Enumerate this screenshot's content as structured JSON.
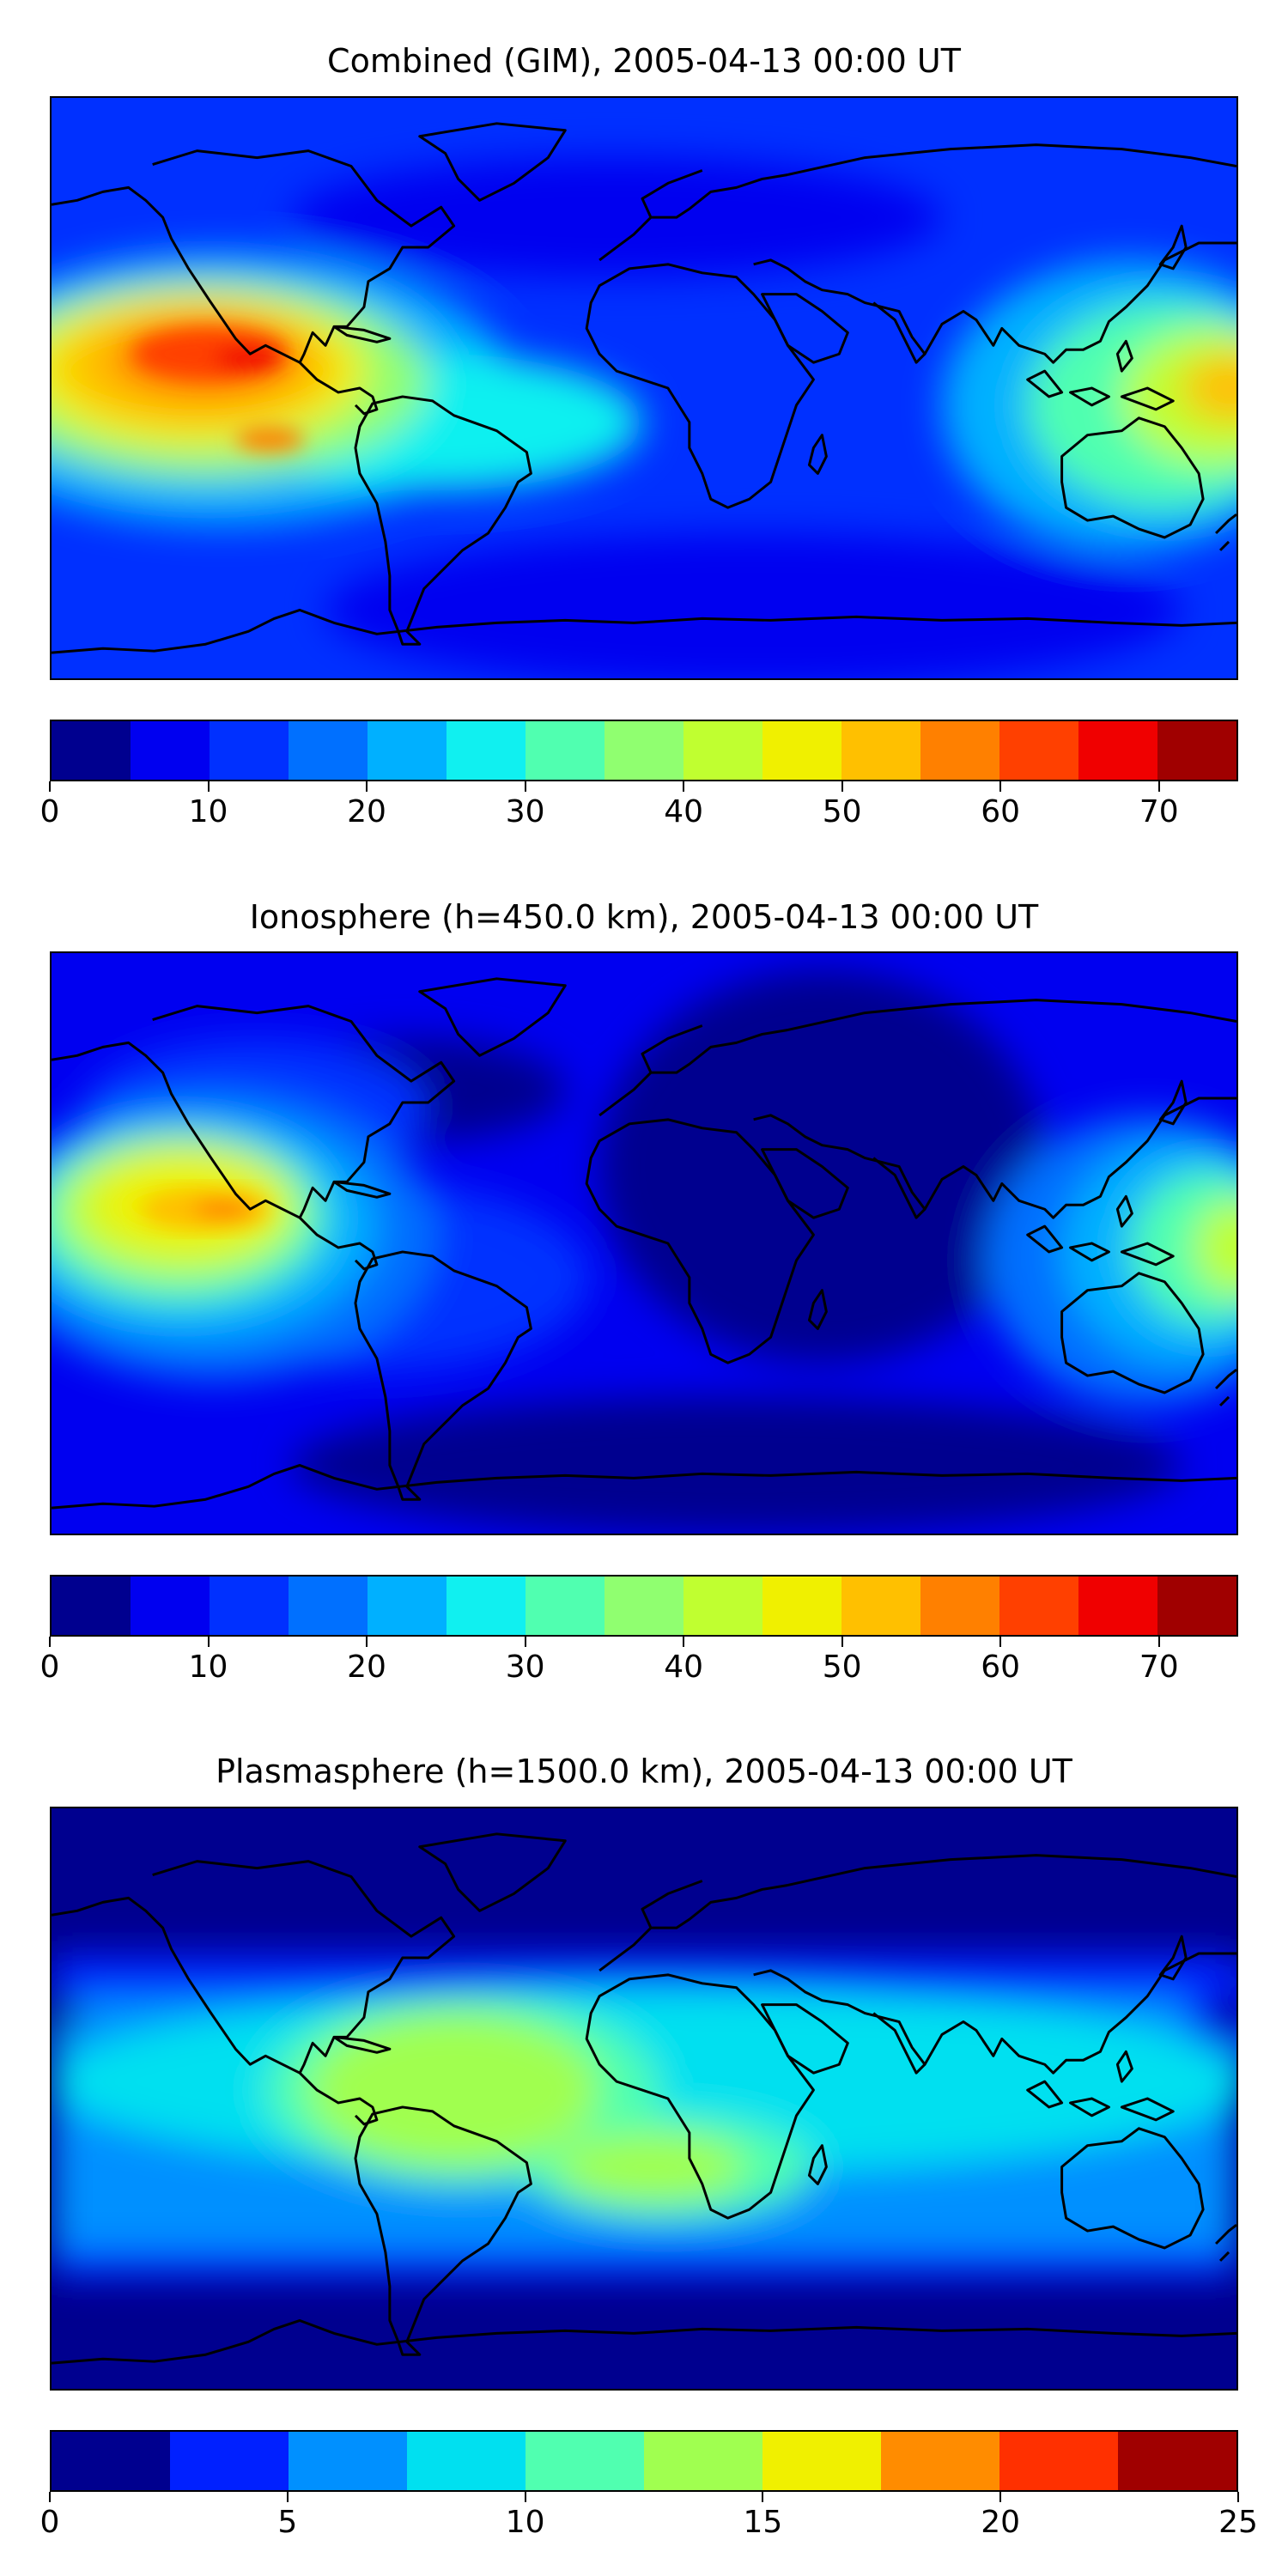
{
  "panels": [
    {
      "title": "Combined (GIM), 2005-04-13 00:00 UT",
      "colorbar": {
        "ticks": [
          "0",
          "10",
          "20",
          "30",
          "40",
          "50",
          "60",
          "70"
        ],
        "tick_values": [
          0,
          10,
          20,
          30,
          40,
          50,
          60,
          70
        ],
        "min": 0,
        "max": 75,
        "colors": [
          "#00008f",
          "#0000f0",
          "#0030ff",
          "#0070ff",
          "#00b0ff",
          "#10f0f0",
          "#50ffb0",
          "#90ff70",
          "#c0ff30",
          "#f0f000",
          "#ffc000",
          "#ff8000",
          "#ff4000",
          "#f00000",
          "#a00000"
        ]
      }
    },
    {
      "title": "Ionosphere  (h=450.0 km), 2005-04-13 00:00 UT",
      "colorbar": {
        "ticks": [
          "0",
          "10",
          "20",
          "30",
          "40",
          "50",
          "60",
          "70"
        ],
        "tick_values": [
          0,
          10,
          20,
          30,
          40,
          50,
          60,
          70
        ],
        "min": 0,
        "max": 75,
        "colors": [
          "#00008f",
          "#0000f0",
          "#0030ff",
          "#0070ff",
          "#00b0ff",
          "#10f0f0",
          "#50ffb0",
          "#90ff70",
          "#c0ff30",
          "#f0f000",
          "#ffc000",
          "#ff8000",
          "#ff4000",
          "#f00000",
          "#a00000"
        ]
      }
    },
    {
      "title": "Plasmasphere (h=1500.0 km), 2005-04-13 00:00 UT",
      "colorbar": {
        "ticks": [
          "0",
          "5",
          "10",
          "15",
          "20",
          "25"
        ],
        "tick_values": [
          0,
          5,
          10,
          15,
          20,
          25
        ],
        "min": 0,
        "max": 25,
        "colors": [
          "#00008f",
          "#0020ff",
          "#0090ff",
          "#00e0f0",
          "#50ffb0",
          "#a0ff50",
          "#f0f000",
          "#ff8c00",
          "#ff3000",
          "#a00000"
        ]
      }
    }
  ]
}
